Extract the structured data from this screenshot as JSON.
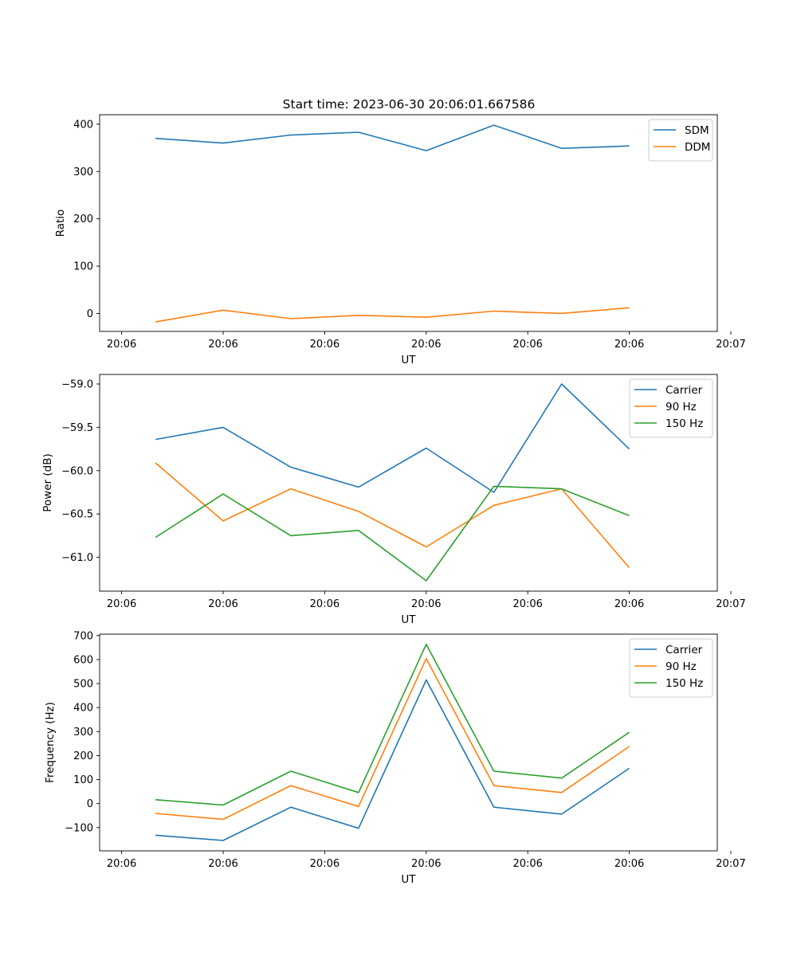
{
  "figure": {
    "title": "Start time: 2023-06-30 20:06:01.667586"
  },
  "colors": {
    "blue": "#1f77b4",
    "orange": "#ff7f0e",
    "green": "#2ca02c"
  },
  "chart_data": [
    {
      "type": "line",
      "title": "Start time: 2023-06-30 20:06:01.667586",
      "xlabel": "UT",
      "ylabel": "Ratio",
      "x": [
        1,
        2,
        3,
        4,
        5,
        6,
        7,
        8
      ],
      "xlim": [
        0.175,
        9.3
      ],
      "xticks": [
        0.5,
        2,
        3.5,
        5,
        6.5,
        8,
        9.5
      ],
      "xtick_labels": [
        "20:06",
        "20:06",
        "20:06",
        "20:06",
        "20:06",
        "20:06",
        "20:07"
      ],
      "ylim": [
        -38,
        420
      ],
      "yticks": [
        0,
        100,
        200,
        300,
        400
      ],
      "ytick_labels": [
        "0",
        "100",
        "200",
        "300",
        "400"
      ],
      "grid": false,
      "legend": "top-right",
      "series": [
        {
          "name": "SDM",
          "color": "#1f77b4",
          "values": [
            370,
            360,
            377,
            383,
            344,
            398,
            349,
            354
          ]
        },
        {
          "name": "DDM",
          "color": "#ff7f0e",
          "values": [
            -18,
            7,
            -11,
            -4,
            -8,
            5,
            0,
            12
          ]
        }
      ]
    },
    {
      "type": "line",
      "xlabel": "UT",
      "ylabel": "Power (dB)",
      "x": [
        1,
        2,
        3,
        4,
        5,
        6,
        7,
        8
      ],
      "xlim": [
        0.175,
        9.3
      ],
      "xticks": [
        0.5,
        2,
        3.5,
        5,
        6.5,
        8,
        9.5
      ],
      "xtick_labels": [
        "20:06",
        "20:06",
        "20:06",
        "20:06",
        "20:06",
        "20:06",
        "20:07"
      ],
      "ylim": [
        -61.39,
        -58.89
      ],
      "yticks": [
        -61.0,
        -60.5,
        -60.0,
        -59.5,
        -59.0
      ],
      "ytick_labels": [
        "−61.0",
        "−60.5",
        "−60.0",
        "−59.5",
        "−59.0"
      ],
      "grid": false,
      "legend": "top-right",
      "series": [
        {
          "name": "Carrier",
          "color": "#1f77b4",
          "values": [
            -59.64,
            -59.5,
            -59.96,
            -60.19,
            -59.74,
            -60.25,
            -59.0,
            -59.75
          ]
        },
        {
          "name": "90 Hz",
          "color": "#ff7f0e",
          "values": [
            -59.91,
            -60.58,
            -60.21,
            -60.47,
            -60.88,
            -60.4,
            -60.21,
            -61.12
          ]
        },
        {
          "name": "150 Hz",
          "color": "#2ca02c",
          "values": [
            -60.77,
            -60.27,
            -60.75,
            -60.69,
            -61.27,
            -60.18,
            -60.21,
            -60.52
          ]
        }
      ]
    },
    {
      "type": "line",
      "xlabel": "UT",
      "ylabel": "Frequency (Hz)",
      "x": [
        1,
        2,
        3,
        4,
        5,
        6,
        7,
        8
      ],
      "xlim": [
        0.175,
        9.3
      ],
      "xticks": [
        0.5,
        2,
        3.5,
        5,
        6.5,
        8,
        9.5
      ],
      "xtick_labels": [
        "20:06",
        "20:06",
        "20:06",
        "20:06",
        "20:06",
        "20:06",
        "20:07"
      ],
      "ylim": [
        -197,
        706
      ],
      "yticks": [
        -100,
        0,
        100,
        200,
        300,
        400,
        500,
        600,
        700
      ],
      "ytick_labels": [
        "−100",
        "0",
        "100",
        "200",
        "300",
        "400",
        "500",
        "600",
        "700"
      ],
      "grid": false,
      "legend": "top-right",
      "series": [
        {
          "name": "Carrier",
          "color": "#1f77b4",
          "values": [
            -132,
            -154,
            -15,
            -103,
            515,
            -15,
            -44,
            147
          ]
        },
        {
          "name": "90 Hz",
          "color": "#ff7f0e",
          "values": [
            -41,
            -66,
            75,
            -12,
            604,
            75,
            46,
            238
          ]
        },
        {
          "name": "150 Hz",
          "color": "#2ca02c",
          "values": [
            16,
            -6,
            135,
            46,
            664,
            135,
            106,
            297
          ]
        }
      ]
    }
  ]
}
